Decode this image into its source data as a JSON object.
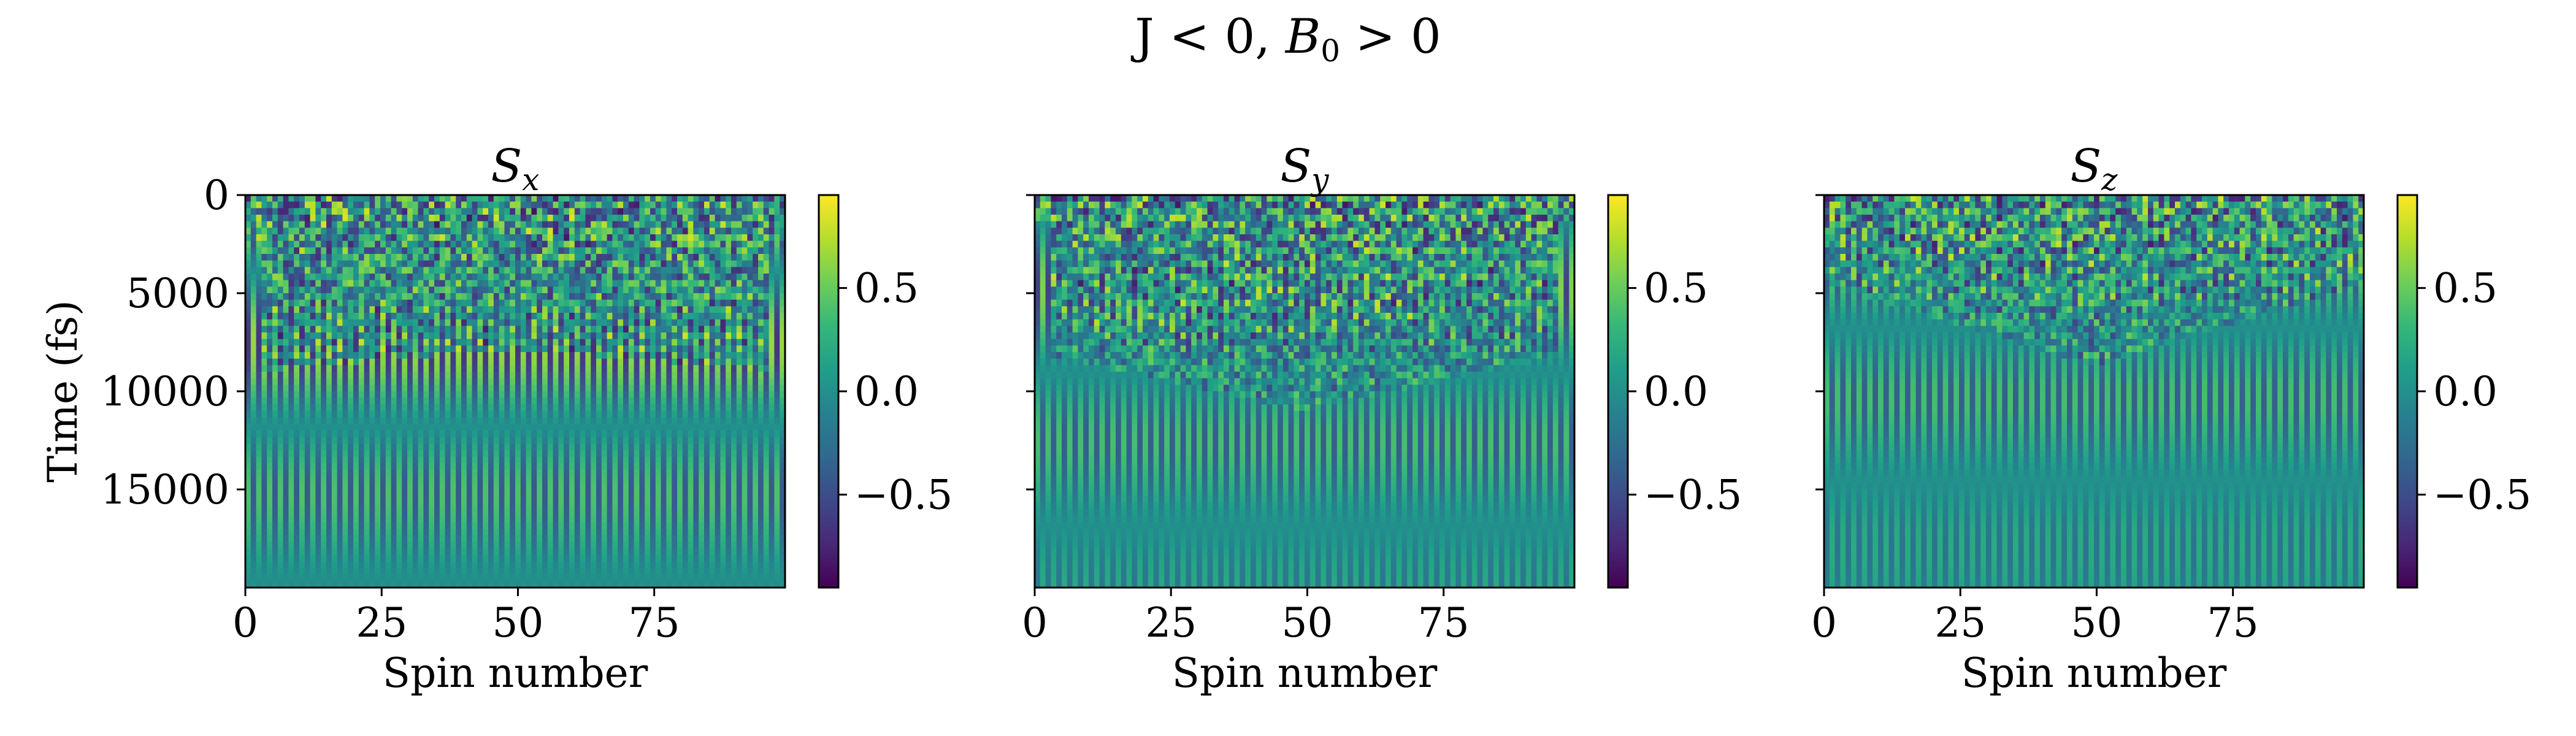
{
  "figure": {
    "suptitle_main": "J < 0, ",
    "suptitle_math_var": "B",
    "suptitle_math_sub": "0",
    "suptitle_tail": " > 0"
  },
  "colormap": {
    "name": "viridis",
    "stops": [
      "#440154",
      "#482878",
      "#3e4989",
      "#31688e",
      "#26828e",
      "#1f9e89",
      "#35b779",
      "#6ece58",
      "#b5de2b",
      "#fde725"
    ]
  },
  "chart_data": [
    {
      "type": "heatmap",
      "title_var": "S",
      "title_sub": "x",
      "xlabel": "Spin number",
      "ylabel": "Time (fs)",
      "xlim": [
        0,
        99
      ],
      "ylim": [
        20000,
        0
      ],
      "xticks": [
        "0",
        "25",
        "50",
        "75"
      ],
      "xtick_values": [
        0,
        25,
        50,
        75
      ],
      "yticks": [
        "0",
        "5000",
        "10000",
        "15000"
      ],
      "ytick_values": [
        0,
        5000,
        10000,
        15000
      ],
      "colorbar": {
        "range": [
          -0.95,
          0.95
        ],
        "ticks": [
          "0.5",
          "0.0",
          "−0.5"
        ],
        "tick_values": [
          0.5,
          0.0,
          -0.5
        ]
      },
      "n_spins": 100,
      "pattern": {
        "stripe_amp": 0.9,
        "stripe_phase": 0,
        "front_time": 9000,
        "front_slope": 60,
        "edge_early": 2500,
        "noise_amp": 0.85
      }
    },
    {
      "type": "heatmap",
      "title_var": "S",
      "title_sub": "y",
      "xlabel": "Spin number",
      "ylabel": "",
      "xlim": [
        0,
        99
      ],
      "ylim": [
        20000,
        0
      ],
      "xticks": [
        "0",
        "25",
        "50",
        "75"
      ],
      "xtick_values": [
        0,
        25,
        50,
        75
      ],
      "yticks": [],
      "ytick_values": [
        0,
        5000,
        10000,
        15000
      ],
      "colorbar": {
        "range": [
          -0.95,
          0.95
        ],
        "ticks": [
          "0.5",
          "0.0",
          "−0.5"
        ],
        "tick_values": [
          0.5,
          0.0,
          -0.5
        ]
      },
      "n_spins": 100,
      "pattern": {
        "stripe_amp": 0.7,
        "stripe_phase": 1.1,
        "front_time": 8000,
        "front_slope": 150,
        "edge_early": 1500,
        "noise_amp": 0.85
      }
    },
    {
      "type": "heatmap",
      "title_var": "S",
      "title_sub": "z",
      "xlabel": "Spin number",
      "ylabel": "",
      "xlim": [
        0,
        99
      ],
      "ylim": [
        20000,
        0
      ],
      "xticks": [
        "0",
        "25",
        "50",
        "75"
      ],
      "xtick_values": [
        0,
        25,
        50,
        75
      ],
      "yticks": [],
      "ytick_values": [
        0,
        5000,
        10000,
        15000
      ],
      "colorbar": {
        "range": [
          -0.95,
          0.95
        ],
        "ticks": [
          "0.5",
          "0.0",
          "−0.5"
        ],
        "tick_values": [
          0.5,
          0.0,
          -0.5
        ]
      },
      "n_spins": 100,
      "pattern": {
        "stripe_amp": 0.6,
        "stripe_phase": 2.0,
        "front_time": 4500,
        "front_slope": 210,
        "edge_early": 0,
        "noise_amp": 0.85
      }
    }
  ]
}
